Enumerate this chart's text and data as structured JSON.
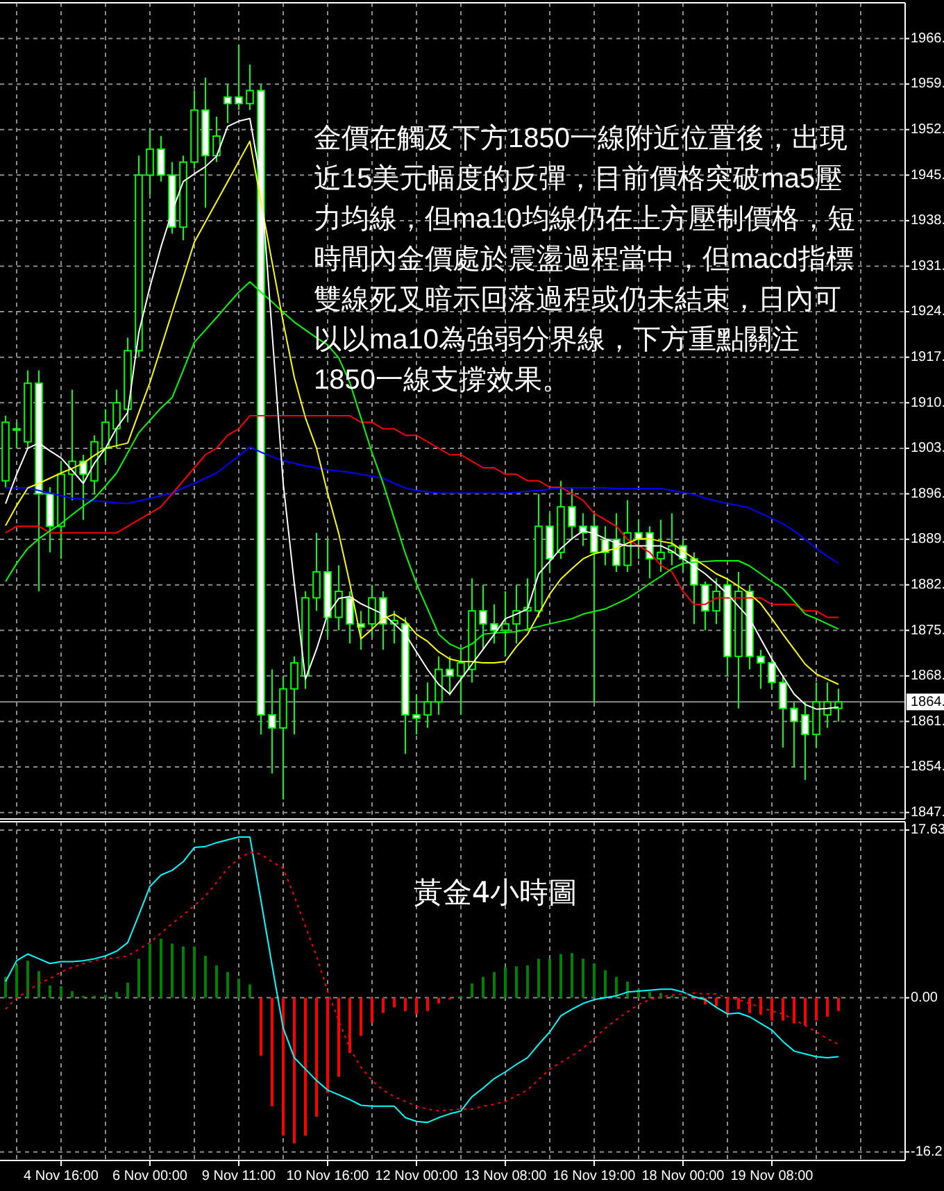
{
  "chart_data": [
    {
      "type": "candlestick",
      "categories": [
        null,
        null,
        null,
        null,
        null,
        null,
        null,
        null,
        null,
        null,
        null,
        null,
        null,
        null,
        null,
        null,
        null,
        null,
        null,
        null,
        null,
        null,
        null,
        null,
        null,
        null,
        null,
        null,
        null,
        null,
        null,
        null,
        null,
        null,
        null,
        null,
        null,
        null,
        null,
        null,
        null,
        null,
        null,
        null,
        null,
        null,
        null,
        null,
        null,
        null,
        null,
        null,
        null,
        null,
        null,
        null,
        null,
        null,
        null,
        null,
        null,
        null,
        null,
        null,
        null,
        null,
        null,
        null,
        null,
        null,
        null,
        null,
        null,
        null,
        null,
        null
      ],
      "series": [
        {
          "color": "#00ff00",
          "ohlc": [
            [
              1898,
              1908,
              1897,
              1907
            ],
            [
              1906,
              1907,
              1903,
              1906
            ],
            [
              1904,
              1915,
              1903,
              1913
            ],
            [
              1913,
              1915,
              1881,
              1896
            ],
            [
              1896,
              1897,
              1887,
              1891
            ],
            [
              1891,
              1901,
              1886,
              1899
            ],
            [
              1899,
              1912,
              1895,
              1901
            ],
            [
              1901,
              1902,
              1892,
              1899
            ],
            [
              1898,
              1905,
              1896,
              1904
            ],
            [
              1903,
              1909,
              1901,
              1907
            ],
            [
              1906,
              1912,
              1903,
              1910
            ],
            [
              1909,
              1920,
              1907,
              1918
            ],
            [
              1918,
              1948,
              1917,
              1945
            ],
            [
              1945,
              1952,
              1942,
              1949
            ],
            [
              1949,
              1951,
              1944,
              1945
            ],
            [
              1945,
              1947,
              1936,
              1937
            ],
            [
              1937,
              1948,
              1935,
              1947
            ],
            [
              1947,
              1958,
              1946,
              1955
            ],
            [
              1955,
              1960,
              1940,
              1948
            ],
            [
              1948,
              1954,
              1947,
              1951
            ],
            [
              1957,
              1959,
              1953,
              1956
            ],
            [
              1957,
              1965,
              1955,
              1956
            ],
            [
              1956,
              1962,
              1955,
              1958
            ],
            [
              1958,
              1959,
              1859,
              1862
            ],
            [
              1862,
              1869,
              1853,
              1860
            ],
            [
              1860,
              1868,
              1849,
              1866
            ],
            [
              1866,
              1871,
              1859,
              1870
            ],
            [
              1868,
              1881,
              1866,
              1880
            ],
            [
              1880,
              1890,
              1878,
              1884
            ],
            [
              1884,
              1889,
              1874,
              1877
            ],
            [
              1877,
              1885,
              1875,
              1881
            ],
            [
              1880,
              1881,
              1873,
              1876
            ],
            [
              1876,
              1878,
              1872,
              1875.5
            ],
            [
              1876,
              1882,
              1874,
              1880
            ],
            [
              1880,
              1881,
              1872,
              1876
            ],
            [
              1876,
              1878,
              1873,
              1876.5
            ],
            [
              1876,
              1877,
              1856,
              1862
            ],
            [
              1862,
              1865,
              1859,
              1861.5
            ],
            [
              1862,
              1867,
              1860,
              1864
            ],
            [
              1864,
              1871,
              1862,
              1869
            ],
            [
              1869,
              1871,
              1865,
              1868
            ],
            [
              1868,
              1872,
              1862,
              1870
            ],
            [
              1869,
              1883,
              1867,
              1878
            ],
            [
              1878,
              1882,
              1872,
              1876
            ],
            [
              1876,
              1879,
              1873,
              1875
            ],
            [
              1875,
              1881,
              1871,
              1876
            ],
            [
              1876,
              1882,
              1873,
              1878
            ],
            [
              1878,
              1883,
              1875,
              1878.5
            ],
            [
              1878,
              1896,
              1877,
              1891
            ],
            [
              1891,
              1893,
              1884,
              1886
            ],
            [
              1887,
              1898,
              1886,
              1894
            ],
            [
              1894,
              1897,
              1889,
              1891
            ],
            [
              1891,
              1893,
              1888,
              1890
            ],
            [
              1891,
              1893,
              1864,
              1887
            ],
            [
              1889,
              1891,
              1885,
              1887
            ],
            [
              1889,
              1893,
              1884,
              1885
            ],
            [
              1885,
              1895,
              1884,
              1890
            ],
            [
              1890,
              1892,
              1886,
              1889
            ],
            [
              1890,
              1891,
              1883,
              1886
            ],
            [
              1886,
              1892,
              1884,
              1887
            ],
            [
              1887,
              1893,
              1885,
              1888
            ],
            [
              1888,
              1889,
              1884,
              1886
            ],
            [
              1886,
              1887,
              1876,
              1882
            ],
            [
              1882,
              1882.5,
              1875,
              1878
            ],
            [
              1878,
              1883,
              1876,
              1881
            ],
            [
              1882,
              1883,
              1868,
              1871
            ],
            [
              1871,
              1884,
              1863,
              1881
            ],
            [
              1881,
              1882,
              1869,
              1871
            ],
            [
              1871,
              1872,
              1866,
              1870
            ],
            [
              1870,
              1871,
              1866,
              1867
            ],
            [
              1867,
              1868,
              1857,
              1863
            ],
            [
              1863,
              1864,
              1854,
              1861
            ],
            [
              1862,
              1864,
              1852,
              1859
            ],
            [
              1859,
              1867,
              1857,
              1864
            ],
            [
              1862,
              1867,
              1860,
              1864
            ],
            [
              1863,
              1866,
              1861,
              1864
            ]
          ]
        },
        {
          "type": "line",
          "color": "#0000ff",
          "values": [
            1896.9,
            1896.9,
            1896.9,
            1896.5,
            1896.1,
            1895.7,
            1895.3,
            1895.2,
            1894.9,
            1894.8,
            1894.6,
            1894.5,
            1894.9,
            1895.3,
            1895.7,
            1896.1,
            1896.9,
            1897.6,
            1898.4,
            1899.2,
            1900.5,
            1901.8,
            1903.2,
            1902.4,
            1901.7,
            1901.1,
            1900.7,
            1900.3,
            1900,
            1899.7,
            1899.5,
            1899.3,
            1899,
            1898.7,
            1898.4,
            1897.6,
            1896.9,
            1896.5,
            1896.3,
            1896.1,
            1896.1,
            1896.1,
            1896.1,
            1896.1,
            1896.1,
            1896.1,
            1896.2,
            1896.4,
            1896.5,
            1896.7,
            1896.9,
            1896.9,
            1896.9,
            1896.9,
            1896.9,
            1896.8,
            1896.8,
            1896.8,
            1896.8,
            1896.8,
            1896.5,
            1896.2,
            1895.9,
            1895.3,
            1894.9,
            1894.5,
            1894.2,
            1893.8,
            1893,
            1892.2,
            1891.4,
            1890.3,
            1889,
            1887.6,
            1886.4,
            1885.3
          ]
        },
        {
          "type": "line",
          "color": "#ff0000",
          "values": [
            1890,
            1891,
            1891,
            1891,
            1890,
            1890,
            1890,
            1890,
            1890,
            1890,
            1890,
            1891,
            1892,
            1893,
            1894,
            1896,
            1898,
            1900,
            1902,
            1903,
            1905,
            1906,
            1908,
            1908,
            1908,
            1908,
            1908,
            1908,
            1908,
            1908,
            1908,
            1908,
            1907,
            1907,
            1906,
            1906,
            1905,
            1905,
            1904,
            1903,
            1902,
            1902,
            1901,
            1900,
            1900,
            1899,
            1899,
            1898,
            1898,
            1897,
            1897,
            1896,
            1895,
            1893,
            1892,
            1891,
            1889,
            1888,
            1887,
            1885,
            1884,
            1881,
            1879,
            1879,
            1880,
            1880,
            1880,
            1880,
            1880,
            1879,
            1879,
            1879,
            1878,
            1878,
            1877,
            1877
          ]
        },
        {
          "type": "line",
          "color": "#00ff00",
          "values": [
            1882.5,
            1885.3,
            1887.6,
            1889.1,
            1890.3,
            1891.4,
            1892.8,
            1894.1,
            1895.3,
            1897.2,
            1899.2,
            1902.3,
            1905.4,
            1907.3,
            1909.2,
            1910.8,
            1915,
            1919.3,
            1921.2,
            1923.1,
            1925.1,
            1927,
            1928.6,
            1927,
            1925.5,
            1923.9,
            1922.4,
            1921.2,
            1920,
            1918.9,
            1916.9,
            1913.1,
            1907.7,
            1902.3,
            1897.6,
            1892.2,
            1886.8,
            1882.2,
            1878.3,
            1874.4,
            1872.9,
            1872.1,
            1872.9,
            1874.4,
            1874.6,
            1874.7,
            1874.8,
            1875.2,
            1875.6,
            1876,
            1876.4,
            1876.8,
            1877.5,
            1877.9,
            1878.3,
            1879.1,
            1879.9,
            1881,
            1882.2,
            1883.3,
            1884.5,
            1885.3,
            1885.5,
            1885.6,
            1885.7,
            1885.7,
            1885.7,
            1884.9,
            1883.7,
            1882.5,
            1881.4,
            1879.5,
            1877.5,
            1876.8,
            1876,
            1875.2
          ]
        },
        {
          "type": "line",
          "color": "#ffff00",
          "values": [
            1891.1,
            1894.2,
            1896.9,
            1897.6,
            1898.4,
            1899.2,
            1899.9,
            1900.7,
            1901.9,
            1903,
            1903.4,
            1903.8,
            1908.5,
            1913.1,
            1918.5,
            1923.9,
            1929.3,
            1934.7,
            1937.8,
            1940.9,
            1944,
            1947.1,
            1950.2,
            1940.9,
            1931.6,
            1922.4,
            1913.9,
            1907.7,
            1903,
            1896.1,
            1889.9,
            1882.2,
            1873.7,
            1875.2,
            1876.8,
            1877.5,
            1876.4,
            1874.4,
            1873.3,
            1871.7,
            1870.6,
            1870.2,
            1870.2,
            1870,
            1870,
            1870.2,
            1872.5,
            1874.4,
            1877.5,
            1880.6,
            1882.9,
            1884.5,
            1886,
            1886.8,
            1887.2,
            1887.6,
            1888.4,
            1889.1,
            1889.1,
            1888.7,
            1888.4,
            1887.2,
            1886,
            1884.9,
            1883.7,
            1882.9,
            1881.8,
            1880.6,
            1879.1,
            1876.8,
            1874.4,
            1872.1,
            1869.8,
            1868.3,
            1867.5,
            1866.7
          ]
        },
        {
          "type": "line",
          "color": "#ffffff",
          "values": [
            1894.5,
            1899,
            1903,
            1903.8,
            1902.6,
            1901.5,
            1899.6,
            1897.6,
            1900.7,
            1903,
            1906.1,
            1908.5,
            1920.8,
            1927.8,
            1934,
            1939.4,
            1944,
            1945.2,
            1946.3,
            1947.9,
            1952.5,
            1953.3,
            1953.7,
            1944,
            1920.8,
            1897.6,
            1882.2,
            1867.5,
            1872.1,
            1877.5,
            1879.9,
            1880.2,
            1879.1,
            1878.3,
            1877.5,
            1876,
            1874.4,
            1871.7,
            1869,
            1866.7,
            1865.2,
            1867.5,
            1869.8,
            1872.1,
            1874.4,
            1876.8,
            1877.5,
            1878.3,
            1883.7,
            1885.6,
            1887.6,
            1889.1,
            1890.3,
            1889.9,
            1889.1,
            1888.4,
            1888,
            1888,
            1888,
            1888,
            1887.2,
            1886,
            1884.9,
            1883.7,
            1882.2,
            1880.6,
            1878.7,
            1876.8,
            1873.7,
            1870.6,
            1867.9,
            1865.2,
            1863.6,
            1862.9,
            1863,
            1863.2
          ]
        }
      ],
      "ylim": [
        1846,
        1971.5
      ],
      "yticks": [
        {
          "value": 1966,
          "label": "1966."
        },
        {
          "value": 1959,
          "label": "1959."
        },
        {
          "value": 1952,
          "label": "1952."
        },
        {
          "value": 1945,
          "label": "1945."
        },
        {
          "value": 1938,
          "label": "1938."
        },
        {
          "value": 1931,
          "label": "1931."
        },
        {
          "value": 1924,
          "label": "1924."
        },
        {
          "value": 1917,
          "label": "1917."
        },
        {
          "value": 1910,
          "label": "1910."
        },
        {
          "value": 1903,
          "label": "1903."
        },
        {
          "value": 1896,
          "label": "1896."
        },
        {
          "value": 1889,
          "label": "1889."
        },
        {
          "value": 1882,
          "label": "1882."
        },
        {
          "value": 1875,
          "label": "1875."
        },
        {
          "value": 1868,
          "label": "1868."
        },
        {
          "value": 1861,
          "label": "1861."
        },
        {
          "value": 1854,
          "label": "1854."
        },
        {
          "value": 1847,
          "label": "1847."
        }
      ],
      "grid": true,
      "tick_labels": "y",
      "ref_lines": [
        {
          "axis": "y",
          "value": 1864,
          "label": "1864.",
          "color": "#8c8c8c"
        }
      ],
      "annotations": [
        "金價在觸及下方1850一線附近位置後，出現近15美元幅度的反彈，目前價格突破ma5壓力均線，但ma10均線仍在上方壓制價格，短時間內金價處於震盪過程當中，但macd指標雙線死叉暗示回落過程或仍未結束，日內可以以ma10為強弱分界線，下方重點關注1850一線支撐效果。"
      ]
    },
    {
      "type": "bar",
      "categories": [
        null,
        null,
        null,
        null,
        null,
        "4 Nov 16:00",
        null,
        null,
        null,
        null,
        null,
        null,
        null,
        "6 Nov 00:00",
        null,
        null,
        null,
        null,
        null,
        null,
        null,
        "9 Nov 11:00",
        null,
        null,
        null,
        null,
        null,
        null,
        null,
        "10 Nov 16:00",
        null,
        null,
        null,
        null,
        null,
        null,
        null,
        "12 Nov 00:00",
        null,
        null,
        null,
        null,
        null,
        null,
        null,
        "13 Nov 08:00",
        null,
        null,
        null,
        null,
        null,
        null,
        null,
        "16 Nov 19:00",
        null,
        null,
        null,
        null,
        null,
        null,
        null,
        "18 Nov 00:00",
        null,
        null,
        null,
        null,
        null,
        null,
        null,
        "19 Nov 08:00",
        null,
        null,
        null,
        null,
        null,
        null
      ],
      "series": [
        {
          "values": [
            2.2,
            3.4,
            3.9,
            2.8,
            1.3,
            1.2,
            0.7,
            0.2,
            0.2,
            0.3,
            0.6,
            1.6,
            4.1,
            5.7,
            6.2,
            5.7,
            5.4,
            5.4,
            4.4,
            3.4,
            2.7,
            2.0,
            1.4,
            -6.1,
            -11.4,
            -14.5,
            -15.3,
            -14.5,
            -12.5,
            -10.0,
            -8.3,
            -5.8,
            -4.0,
            -2.6,
            -1.6,
            -1.0,
            -1.4,
            -1.7,
            -1.4,
            -0.6,
            -0.2,
            0.2,
            1.5,
            2.2,
            2.7,
            3.2,
            3.3,
            3.4,
            4.1,
            4.1,
            4.6,
            4.7,
            4.1,
            3.6,
            2.9,
            2.2,
            1.7,
            0.9,
            0.6,
            0.5,
            0.2,
            0.2,
            -0.2,
            -0.7,
            -0.9,
            -1.7,
            -1.2,
            -1.6,
            -1.8,
            -2.4,
            -2.4,
            -2.7,
            -2.9,
            -2.4,
            -2.0,
            -1.4
          ],
          "colors": [
            "#008000",
            "#008000",
            "#008000",
            "#008000",
            "#008000",
            "#008000",
            "#008000",
            "#008000",
            "#008000",
            "#008000",
            "#008000",
            "#008000",
            "#008000",
            "#008000",
            "#008000",
            "#008000",
            "#008000",
            "#008000",
            "#008000",
            "#008000",
            "#008000",
            "#008000",
            "#008000",
            "#ff0000",
            "#ff0000",
            "#ff0000",
            "#ff0000",
            "#ff0000",
            "#ff0000",
            "#ff0000",
            "#ff0000",
            "#ff0000",
            "#ff0000",
            "#ff0000",
            "#ff0000",
            "#ff0000",
            "#ff0000",
            "#ff0000",
            "#ff0000",
            "#ff0000",
            "#ff0000",
            "#008000",
            "#008000",
            "#008000",
            "#008000",
            "#008000",
            "#008000",
            "#008000",
            "#008000",
            "#008000",
            "#008000",
            "#008000",
            "#008000",
            "#008000",
            "#008000",
            "#008000",
            "#008000",
            "#008000",
            "#008000",
            "#008000",
            "#008000",
            "#008000",
            "#ff0000",
            "#ff0000",
            "#ff0000",
            "#ff0000",
            "#ff0000",
            "#ff0000",
            "#ff0000",
            "#ff0000",
            "#ff0000",
            "#ff0000",
            "#ff0000",
            "#ff0000",
            "#ff0000",
            "#ff0000"
          ]
        },
        {
          "type": "line",
          "color": "#00ffff",
          "values": [
            1.7,
            3.9,
            4.6,
            4.1,
            3.6,
            3.8,
            3.8,
            3.9,
            4.1,
            4.4,
            4.9,
            5.8,
            8.7,
            11.7,
            12.9,
            13.4,
            14.3,
            15.8,
            15.9,
            16.3,
            16.6,
            16.9,
            16.9,
            10.2,
            3.4,
            -3.2,
            -6.3,
            -7.5,
            -8.7,
            -9.7,
            -10.2,
            -10.7,
            -11.3,
            -11.4,
            -11.4,
            -11.4,
            -12.6,
            -13.0,
            -13.1,
            -12.6,
            -12.2,
            -11.9,
            -10.4,
            -9.5,
            -8.5,
            -7.8,
            -7.0,
            -6.3,
            -4.9,
            -3.6,
            -1.9,
            -1.2,
            -0.6,
            -0.2,
            0,
            0.2,
            0.6,
            0.7,
            0.8,
            0.9,
            0.9,
            0.6,
            0.1,
            -0.2,
            -1.0,
            -1.7,
            -1.6,
            -2.0,
            -2.7,
            -3.4,
            -4.6,
            -5.6,
            -5.9,
            -6.2,
            -6.3,
            -6.2
          ]
        },
        {
          "type": "line",
          "color": "#ff0000",
          "line_style": "dotted",
          "values": [
            -1.2,
            0,
            0.7,
            1.5,
            2.0,
            2.7,
            3.2,
            3.6,
            3.9,
            4.1,
            4.2,
            4.4,
            5.1,
            5.8,
            6.8,
            7.8,
            8.7,
            9.7,
            10.7,
            12.1,
            13.6,
            14.6,
            15.3,
            15.1,
            14.3,
            13.6,
            10.7,
            7.5,
            4.4,
            0.7,
            -2.4,
            -5.3,
            -7.3,
            -8.7,
            -9.7,
            -10.4,
            -10.9,
            -11.4,
            -11.7,
            -11.9,
            -11.8,
            -11.7,
            -11.7,
            -11.4,
            -11.2,
            -10.9,
            -10.3,
            -9.7,
            -8.6,
            -7.5,
            -6.8,
            -6.1,
            -5.3,
            -4.3,
            -3.2,
            -2.3,
            -1.5,
            -0.7,
            -0.2,
            0.1,
            0.3,
            0.4,
            0.5,
            0.4,
            0.4,
            0,
            -0.2,
            -0.6,
            -1.0,
            -1.4,
            -1.7,
            -2.3,
            -2.9,
            -3.6,
            -4.3,
            -4.9
          ]
        }
      ],
      "ylim": [
        -17.1,
        18.5
      ],
      "yticks": [
        17.63,
        {
          "value": 0,
          "label": "0.00"
        },
        -16.2
      ],
      "grid": true,
      "annotations": [
        "黃金4小時圖"
      ]
    }
  ]
}
